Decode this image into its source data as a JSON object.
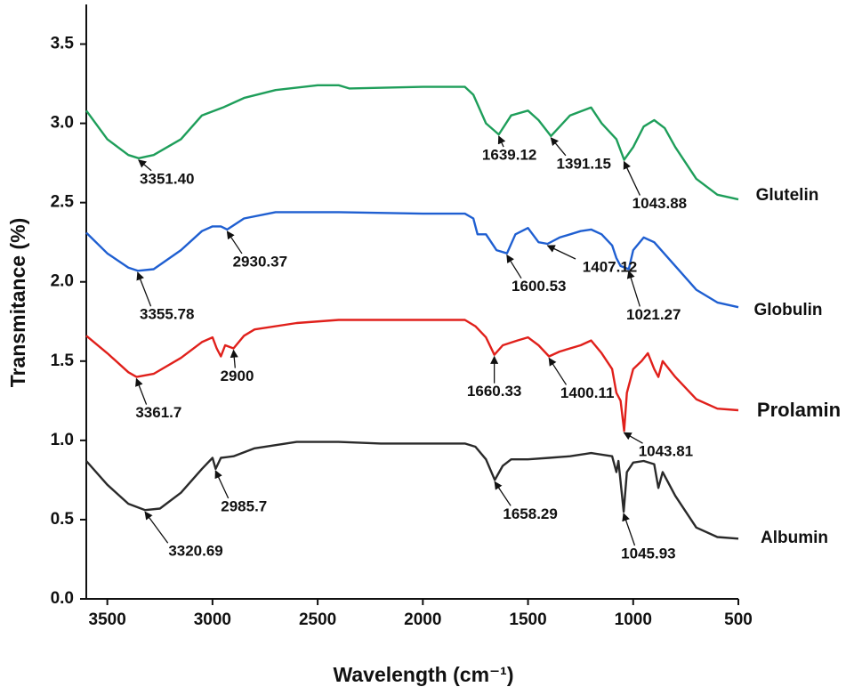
{
  "chart_data": {
    "type": "line",
    "xlabel": "Wavelength (cm⁻¹)",
    "ylabel": "Transmitance (%)",
    "xlim": [
      3600,
      500
    ],
    "ylim": [
      0,
      3.75
    ],
    "xticks": [
      3500,
      3000,
      2500,
      2000,
      1500,
      1000,
      500
    ],
    "yticks": [
      {
        "value": 0,
        "label": "0.0"
      },
      {
        "value": 0.5,
        "label": "0.5"
      },
      {
        "value": 1,
        "label": "1.0"
      },
      {
        "value": 1.5,
        "label": "1.5"
      },
      {
        "value": 2,
        "label": "2.0"
      },
      {
        "value": 2.5,
        "label": "2.5"
      },
      {
        "value": 3,
        "label": "3.0"
      },
      {
        "value": 3.5,
        "label": "3.5"
      }
    ],
    "series": [
      {
        "name": "Glutelin",
        "color": "#1e9e5a",
        "x": [
          3600,
          3500,
          3400,
          3351,
          3280,
          3150,
          3050,
          2950,
          2850,
          2700,
          2500,
          2400,
          2350,
          2000,
          1800,
          1760,
          1700,
          1639,
          1580,
          1500,
          1450,
          1391,
          1300,
          1200,
          1150,
          1080,
          1043,
          1000,
          950,
          900,
          850,
          800,
          700,
          600,
          500
        ],
        "values": [
          3.08,
          2.9,
          2.8,
          2.78,
          2.8,
          2.9,
          3.05,
          3.1,
          3.16,
          3.21,
          3.24,
          3.24,
          3.22,
          3.23,
          3.23,
          3.18,
          3.0,
          2.93,
          3.05,
          3.08,
          3.02,
          2.92,
          3.05,
          3.1,
          3.0,
          2.9,
          2.77,
          2.85,
          2.98,
          3.02,
          2.97,
          2.85,
          2.65,
          2.55,
          2.52
        ],
        "annotations": [
          {
            "label": "3351.40",
            "x": 3351.4,
            "y": 2.78
          },
          {
            "label": "1639.12",
            "x": 1639.12,
            "y": 2.93
          },
          {
            "label": "1391.15",
            "x": 1391.15,
            "y": 2.92
          },
          {
            "label": "1043.88",
            "x": 1043.88,
            "y": 2.77
          }
        ]
      },
      {
        "name": "Globulin",
        "color": "#1f5fd1",
        "x": [
          3600,
          3500,
          3400,
          3355,
          3280,
          3150,
          3050,
          3000,
          2960,
          2930,
          2850,
          2700,
          2400,
          2000,
          1800,
          1760,
          1740,
          1700,
          1650,
          1600,
          1560,
          1500,
          1450,
          1407,
          1350,
          1250,
          1200,
          1150,
          1100,
          1080,
          1060,
          1021,
          1000,
          950,
          900,
          800,
          700,
          600,
          500
        ],
        "values": [
          2.31,
          2.18,
          2.09,
          2.07,
          2.08,
          2.2,
          2.32,
          2.35,
          2.35,
          2.33,
          2.4,
          2.44,
          2.44,
          2.43,
          2.43,
          2.4,
          2.3,
          2.3,
          2.2,
          2.18,
          2.3,
          2.34,
          2.25,
          2.24,
          2.28,
          2.32,
          2.33,
          2.3,
          2.23,
          2.15,
          2.1,
          2.08,
          2.2,
          2.28,
          2.25,
          2.1,
          1.95,
          1.87,
          1.84
        ],
        "annotations": [
          {
            "label": "3355.78",
            "x": 3355.78,
            "y": 2.07
          },
          {
            "label": "2930.37",
            "x": 2930.37,
            "y": 2.33
          },
          {
            "label": "1600.53",
            "x": 1600.53,
            "y": 2.18
          },
          {
            "label": "1407.12",
            "x": 1407.12,
            "y": 2.24
          },
          {
            "label": "1021.27",
            "x": 1021.27,
            "y": 2.08
          }
        ]
      },
      {
        "name": "Prolamin",
        "color": "#e0201b",
        "x": [
          3600,
          3500,
          3400,
          3361,
          3280,
          3150,
          3050,
          3000,
          2980,
          2960,
          2940,
          2900,
          2850,
          2800,
          2600,
          2400,
          2000,
          1800,
          1750,
          1700,
          1660,
          1620,
          1550,
          1500,
          1450,
          1400,
          1350,
          1250,
          1200,
          1150,
          1100,
          1080,
          1060,
          1043,
          1030,
          1000,
          960,
          930,
          900,
          880,
          860,
          800,
          700,
          600,
          500
        ],
        "values": [
          1.66,
          1.55,
          1.43,
          1.4,
          1.42,
          1.52,
          1.62,
          1.65,
          1.58,
          1.53,
          1.6,
          1.58,
          1.66,
          1.7,
          1.74,
          1.76,
          1.76,
          1.76,
          1.72,
          1.65,
          1.54,
          1.6,
          1.63,
          1.65,
          1.6,
          1.53,
          1.56,
          1.6,
          1.63,
          1.55,
          1.45,
          1.3,
          1.25,
          1.06,
          1.3,
          1.45,
          1.5,
          1.55,
          1.45,
          1.4,
          1.5,
          1.4,
          1.26,
          1.2,
          1.19
        ],
        "annotations": [
          {
            "label": "3361.7",
            "x": 3361.7,
            "y": 1.4
          },
          {
            "label": "2900",
            "x": 2900,
            "y": 1.58
          },
          {
            "label": "1660.33",
            "x": 1660.33,
            "y": 1.54
          },
          {
            "label": "1400.11",
            "x": 1400.11,
            "y": 1.53
          },
          {
            "label": "1043.81",
            "x": 1043.81,
            "y": 1.06
          }
        ]
      },
      {
        "name": "Albumin",
        "color": "#2a2a2a",
        "x": [
          3600,
          3500,
          3400,
          3320,
          3250,
          3150,
          3050,
          3000,
          2985,
          2960,
          2900,
          2800,
          2600,
          2400,
          2200,
          2000,
          1800,
          1750,
          1700,
          1658,
          1620,
          1580,
          1500,
          1400,
          1300,
          1200,
          1100,
          1080,
          1070,
          1045,
          1030,
          1000,
          950,
          900,
          880,
          860,
          800,
          700,
          600,
          500
        ],
        "values": [
          0.87,
          0.72,
          0.6,
          0.56,
          0.57,
          0.67,
          0.82,
          0.89,
          0.82,
          0.89,
          0.9,
          0.95,
          0.99,
          0.99,
          0.98,
          0.98,
          0.98,
          0.96,
          0.88,
          0.75,
          0.84,
          0.88,
          0.88,
          0.89,
          0.9,
          0.92,
          0.9,
          0.8,
          0.87,
          0.55,
          0.8,
          0.86,
          0.87,
          0.85,
          0.7,
          0.8,
          0.65,
          0.45,
          0.39,
          0.38
        ],
        "annotations": [
          {
            "label": "3320.69",
            "x": 3320.69,
            "y": 0.56
          },
          {
            "label": "2985.7",
            "x": 2985.7,
            "y": 0.82
          },
          {
            "label": "1658.29",
            "x": 1658.29,
            "y": 0.75
          },
          {
            "label": "1045.93",
            "x": 1045.93,
            "y": 0.55
          }
        ]
      }
    ]
  }
}
